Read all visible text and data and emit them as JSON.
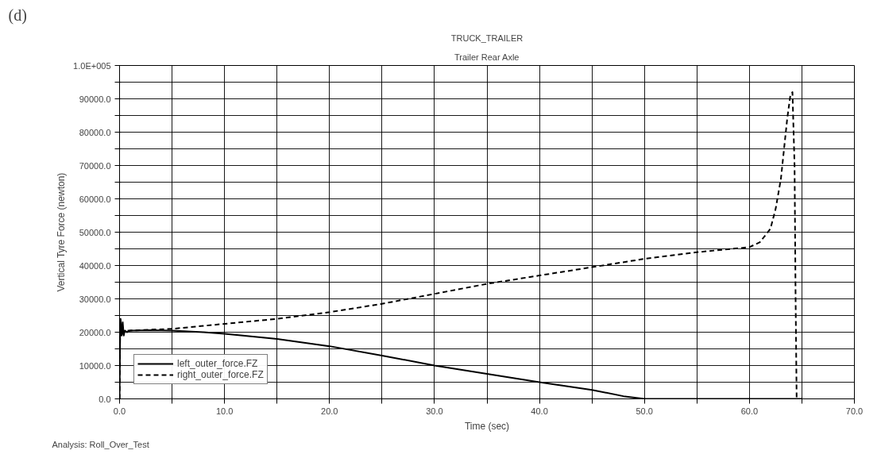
{
  "chart_data": {
    "type": "line",
    "title": "TRUCK_TRAILER",
    "subtitle": "Trailer Rear Axle",
    "xlabel": "Time (sec)",
    "ylabel": "Vertical Tyre Force (newton)",
    "annotations": [
      "(d)",
      "Analysis:  Roll_Over_Test"
    ],
    "xlim": [
      0,
      70
    ],
    "ylim": [
      0,
      100000
    ],
    "xticks": [
      {
        "value": 0,
        "label": "0.0"
      },
      {
        "value": 5,
        "label": null
      },
      {
        "value": 10,
        "label": "10.0"
      },
      {
        "value": 15,
        "label": null
      },
      {
        "value": 20,
        "label": "20.0"
      },
      {
        "value": 25,
        "label": null
      },
      {
        "value": 30,
        "label": "30.0"
      },
      {
        "value": 35,
        "label": null
      },
      {
        "value": 40,
        "label": "40.0"
      },
      {
        "value": 45,
        "label": null
      },
      {
        "value": 50,
        "label": "50.0"
      },
      {
        "value": 55,
        "label": null
      },
      {
        "value": 60,
        "label": "60.0"
      },
      {
        "value": 65,
        "label": null
      },
      {
        "value": 70,
        "label": "70.0"
      }
    ],
    "yticks": [
      {
        "value": 0,
        "label": "0.0"
      },
      {
        "value": 5000,
        "label": null
      },
      {
        "value": 10000,
        "label": "10000.0"
      },
      {
        "value": 15000,
        "label": null
      },
      {
        "value": 20000,
        "label": "20000.0"
      },
      {
        "value": 25000,
        "label": null
      },
      {
        "value": 30000,
        "label": "30000.0"
      },
      {
        "value": 35000,
        "label": null
      },
      {
        "value": 40000,
        "label": "40000.0"
      },
      {
        "value": 45000,
        "label": null
      },
      {
        "value": 50000,
        "label": "50000.0"
      },
      {
        "value": 55000,
        "label": null
      },
      {
        "value": 60000,
        "label": "60000.0"
      },
      {
        "value": 65000,
        "label": null
      },
      {
        "value": 70000,
        "label": "70000.0"
      },
      {
        "value": 75000,
        "label": null
      },
      {
        "value": 80000,
        "label": "80000.0"
      },
      {
        "value": 85000,
        "label": null
      },
      {
        "value": 90000,
        "label": "90000.0"
      },
      {
        "value": 95000,
        "label": null
      },
      {
        "value": 100000,
        "label": "1.0E+005"
      }
    ],
    "grid": true,
    "legend": "bottom left",
    "series": [
      {
        "name": "left_outer_force.FZ",
        "color": "#000000",
        "line_style": "solid",
        "x": [
          0,
          0.05,
          0.1,
          0.2,
          0.3,
          0.4,
          0.5,
          0.7,
          1,
          3,
          5,
          8,
          10,
          15,
          20,
          25,
          30,
          35,
          40,
          45,
          48,
          50,
          55,
          60,
          65
        ],
        "values": [
          0,
          19000,
          24000,
          19000,
          23000,
          19000,
          20500,
          20000,
          20500,
          20600,
          20500,
          20000,
          19500,
          18000,
          15800,
          13000,
          10000,
          7500,
          5000,
          2700,
          800,
          0,
          0,
          0,
          0
        ]
      },
      {
        "name": "right_outer_force.FZ",
        "color": "#000000",
        "line_style": "dashed",
        "x": [
          0,
          0.05,
          0.1,
          0.3,
          0.5,
          1,
          5,
          10,
          15,
          20,
          25,
          30,
          35,
          40,
          45,
          50,
          55,
          60,
          61,
          62,
          62.5,
          63,
          63.3,
          63.6,
          63.9,
          64.1,
          64.3,
          64.4,
          64.5
        ],
        "values": [
          0,
          19000,
          23000,
          19500,
          20500,
          20500,
          21000,
          22500,
          24000,
          26000,
          28500,
          31500,
          34500,
          37000,
          39500,
          42000,
          44000,
          45500,
          47000,
          51000,
          57000,
          66000,
          75000,
          84000,
          91000,
          92000,
          70000,
          30000,
          0
        ]
      }
    ]
  }
}
